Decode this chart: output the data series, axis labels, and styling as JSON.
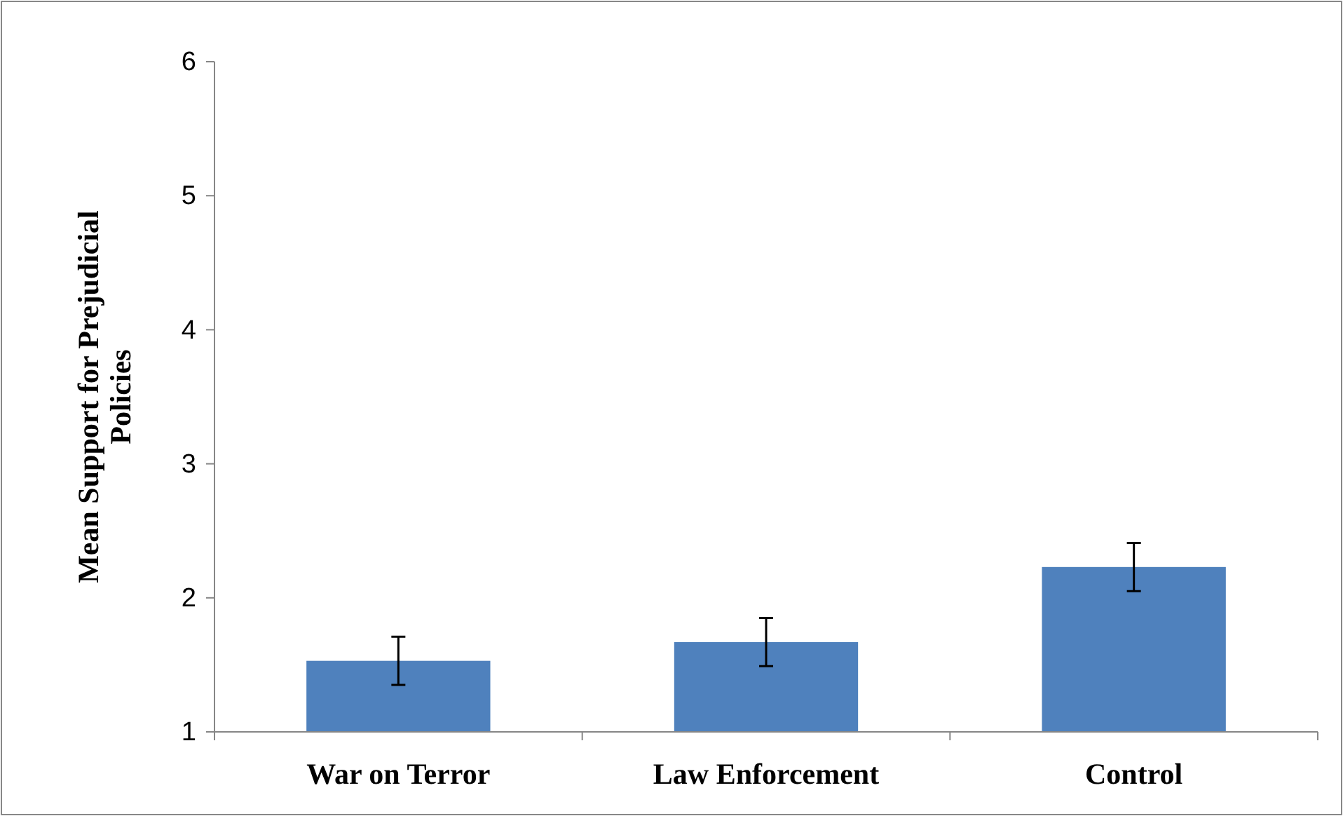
{
  "chart_data": {
    "type": "bar",
    "ylabel": "Mean Support for Prejudicial Policies",
    "categories": [
      "War on Terror",
      "Law Enforcement",
      "Control"
    ],
    "values": [
      1.53,
      1.67,
      2.23
    ],
    "errors": [
      0.18,
      0.18,
      0.18
    ],
    "color": "#4f81bd",
    "ylim": [
      1,
      6
    ],
    "yticks": [
      1,
      2,
      3,
      4,
      5,
      6
    ],
    "grid": false
  }
}
